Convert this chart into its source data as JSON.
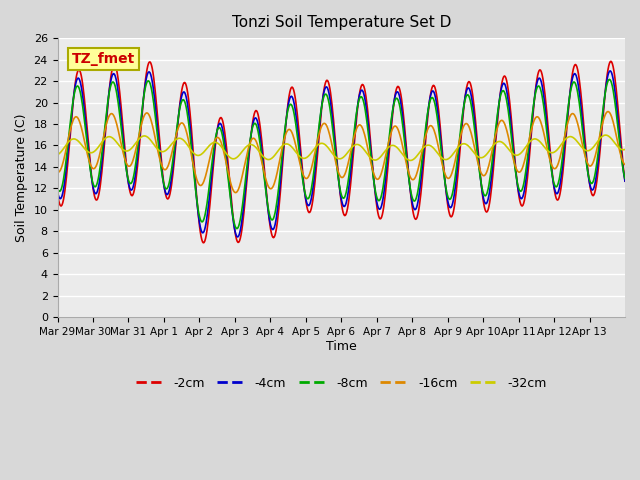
{
  "title": "Tonzi Soil Temperature Set D",
  "xlabel": "Time",
  "ylabel": "Soil Temperature (C)",
  "annotation": "TZ_fmet",
  "annotation_color": "#cc0000",
  "annotation_bg": "#ffff99",
  "annotation_border": "#aaaa00",
  "ylim": [
    0,
    26
  ],
  "yticks": [
    0,
    2,
    4,
    6,
    8,
    10,
    12,
    14,
    16,
    18,
    20,
    22,
    24,
    26
  ],
  "fig_bg_color": "#d8d8d8",
  "plot_bg": "#ebebeb",
  "line_colors": {
    "-2cm": "#dd0000",
    "-4cm": "#0000cc",
    "-8cm": "#00aa00",
    "-16cm": "#dd8800",
    "-32cm": "#cccc00"
  },
  "x_tick_labels": [
    "Mar 29",
    "Mar 30",
    "Mar 31",
    "Apr 1",
    "Apr 2",
    "Apr 3",
    "Apr 4",
    "Apr 5",
    "Apr 6",
    "Apr 7",
    "Apr 8",
    "Apr 9",
    "Apr 10",
    "Apr 11",
    "Apr 12",
    "Apr 13"
  ],
  "n_days": 16,
  "legend_labels": [
    "-2cm",
    "-4cm",
    "-8cm",
    "-16cm",
    "-32cm"
  ]
}
